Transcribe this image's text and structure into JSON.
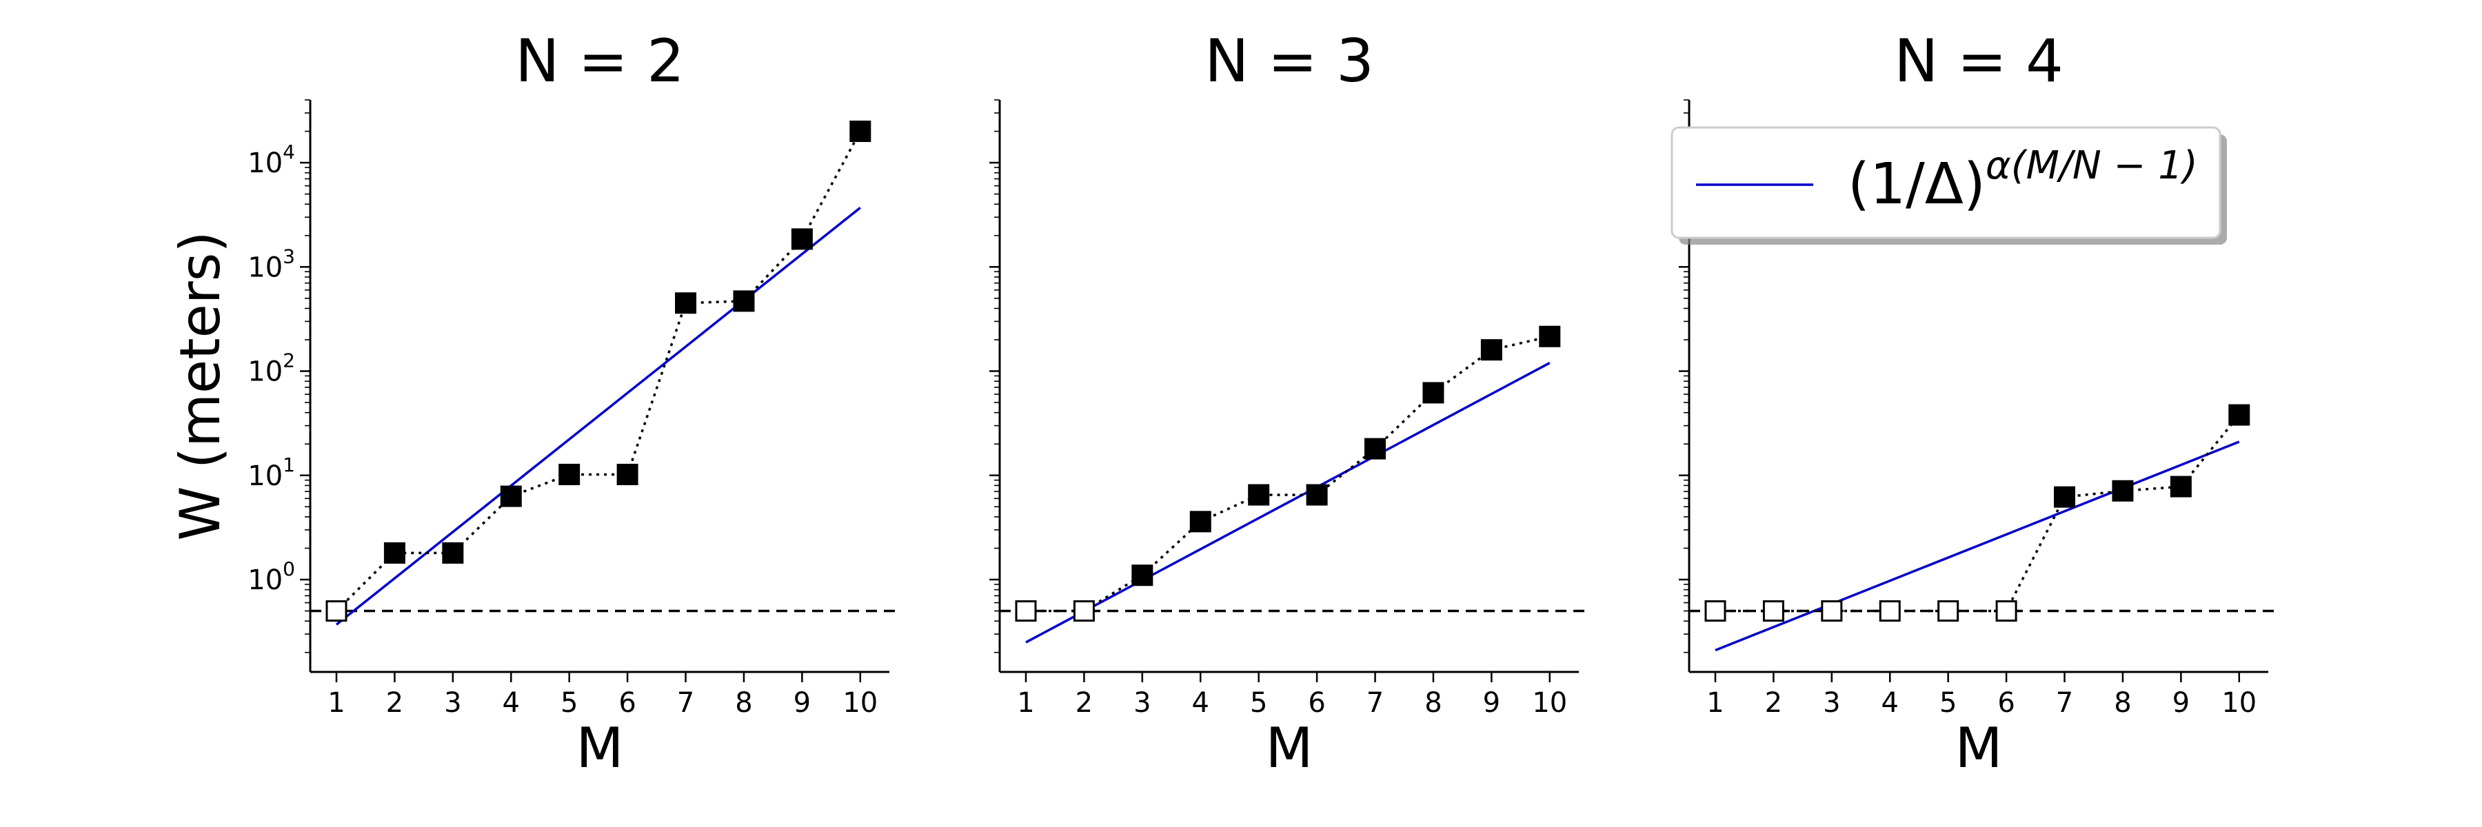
{
  "chart_data": [
    {
      "type": "scatter",
      "title": "N = 2",
      "xlabel": "M",
      "ylabel": "W (meters)",
      "yscale": "log",
      "x": [
        1,
        2,
        3,
        4,
        5,
        6,
        7,
        8,
        9,
        10
      ],
      "y": [
        0.5,
        1.8,
        1.8,
        6.3,
        10.2,
        10.2,
        450,
        470,
        1850,
        20000
      ],
      "filled": [
        false,
        true,
        true,
        true,
        true,
        true,
        true,
        true,
        true,
        true
      ],
      "fit": {
        "x": [
          1,
          10
        ],
        "y": [
          0.37,
          3700
        ]
      },
      "ref_y": 0.5,
      "xticks": [
        1,
        2,
        3,
        4,
        5,
        6,
        7,
        8,
        9,
        10
      ],
      "yticks": [
        1,
        10,
        100,
        1000,
        10000
      ],
      "ytick_labels": [
        {
          "base": "10",
          "exp": "0"
        },
        {
          "base": "10",
          "exp": "1"
        },
        {
          "base": "10",
          "exp": "2"
        },
        {
          "base": "10",
          "exp": "3"
        },
        {
          "base": "10",
          "exp": "4"
        }
      ],
      "xlim": [
        0.55,
        10.5
      ],
      "ylim": [
        0.13,
        40000
      ]
    },
    {
      "type": "scatter",
      "title": "N = 3",
      "xlabel": "M",
      "ylabel": "",
      "yscale": "log",
      "x": [
        1,
        2,
        3,
        4,
        5,
        6,
        7,
        8,
        9,
        10
      ],
      "y": [
        0.5,
        0.5,
        1.1,
        3.6,
        6.5,
        6.5,
        18,
        62,
        160,
        215
      ],
      "filled": [
        false,
        false,
        true,
        true,
        true,
        true,
        true,
        true,
        true,
        true
      ],
      "fit": {
        "x": [
          1,
          10
        ],
        "y": [
          0.25,
          120
        ]
      },
      "ref_y": 0.5,
      "xticks": [
        1,
        2,
        3,
        4,
        5,
        6,
        7,
        8,
        9,
        10
      ],
      "yticks": [
        1,
        10,
        100,
        1000,
        10000
      ],
      "ytick_labels": [],
      "xlim": [
        0.55,
        10.5
      ],
      "ylim": [
        0.13,
        40000
      ]
    },
    {
      "type": "scatter",
      "title": "N = 4",
      "xlabel": "M",
      "ylabel": "",
      "yscale": "log",
      "x": [
        1,
        2,
        3,
        4,
        5,
        6,
        7,
        8,
        9,
        10
      ],
      "y": [
        0.5,
        0.5,
        0.5,
        0.5,
        0.5,
        0.5,
        6.2,
        7.1,
        7.8,
        38
      ],
      "filled": [
        false,
        false,
        false,
        false,
        false,
        false,
        true,
        true,
        true,
        true
      ],
      "fit": {
        "x": [
          1,
          10
        ],
        "y": [
          0.21,
          21
        ]
      },
      "ref_y": 0.5,
      "xticks": [
        1,
        2,
        3,
        4,
        5,
        6,
        7,
        8,
        9,
        10
      ],
      "yticks": [
        1,
        10,
        100,
        1000,
        10000
      ],
      "ytick_labels": [],
      "xlim": [
        0.55,
        10.5
      ],
      "ylim": [
        0.13,
        40000
      ],
      "legend": {
        "placement": "top-right",
        "base": "(1/Δ)",
        "sup_alpha": "α",
        "sup_rest": "(M/N − 1)"
      }
    }
  ],
  "colors": {
    "fit": "#0000cc",
    "markers": "#000000",
    "reference": "#000000"
  }
}
